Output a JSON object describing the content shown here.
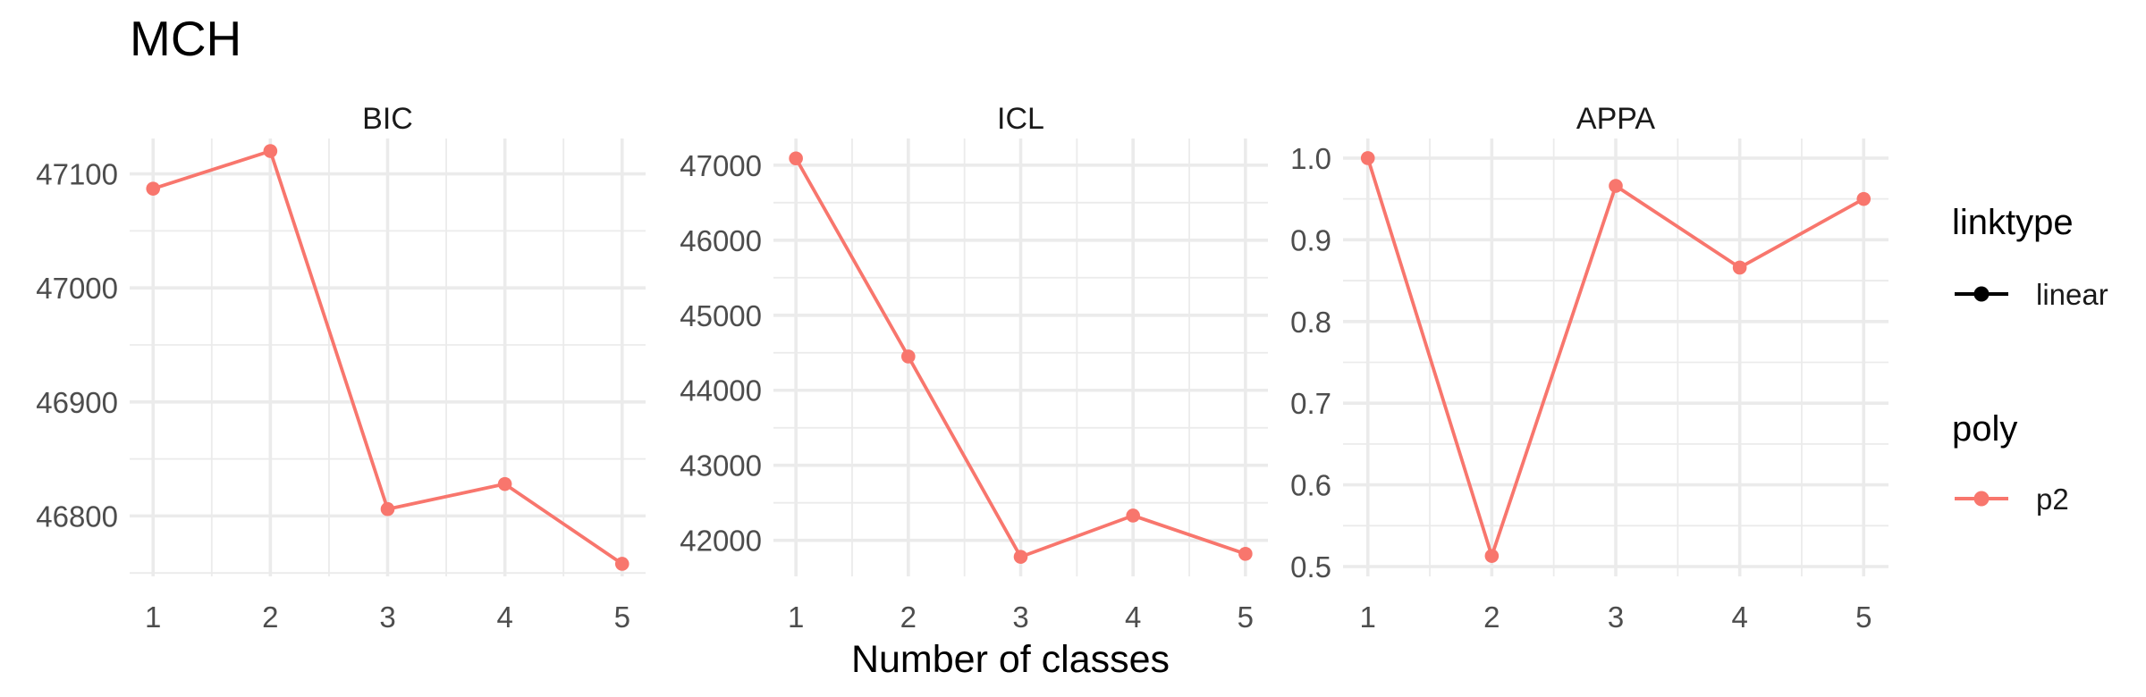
{
  "title": "MCH",
  "xlabel": "Number of classes",
  "colors": {
    "series": "#F8766D",
    "linktype_key": "#000000"
  },
  "legend": {
    "placement": "right",
    "groups": [
      {
        "title": "linktype",
        "entries": [
          {
            "label": "linear",
            "color": "#000000"
          }
        ]
      },
      {
        "title": "poly",
        "entries": [
          {
            "label": "p2",
            "color": "#F8766D"
          }
        ]
      }
    ]
  },
  "chart_data": [
    {
      "type": "line",
      "facet": "BIC",
      "x": [
        1,
        2,
        3,
        4,
        5
      ],
      "xticks": [
        "1",
        "2",
        "3",
        "4",
        "5"
      ],
      "series": [
        {
          "name": "p2",
          "values": [
            47087,
            47120,
            46806,
            46828,
            46758
          ]
        }
      ],
      "yticks": [
        46800,
        46900,
        47000,
        47100
      ],
      "ylim": [
        46747,
        47131
      ],
      "xlim": [
        0.8,
        5.2
      ],
      "grid": true
    },
    {
      "type": "line",
      "facet": "ICL",
      "x": [
        1,
        2,
        3,
        4,
        5
      ],
      "xticks": [
        "1",
        "2",
        "3",
        "4",
        "5"
      ],
      "series": [
        {
          "name": "p2",
          "values": [
            47090,
            44450,
            41780,
            42330,
            41820
          ]
        }
      ],
      "yticks": [
        42000,
        43000,
        44000,
        45000,
        46000,
        47000
      ],
      "ylim": [
        41520,
        47355
      ],
      "xlim": [
        0.8,
        5.2
      ],
      "grid": true
    },
    {
      "type": "line",
      "facet": "APPA",
      "x": [
        1,
        2,
        3,
        4,
        5
      ],
      "xticks": [
        "1",
        "2",
        "3",
        "4",
        "5"
      ],
      "series": [
        {
          "name": "p2",
          "values": [
            1.0,
            0.513,
            0.966,
            0.866,
            0.95
          ]
        }
      ],
      "yticks": [
        "0.5",
        "0.6",
        "0.7",
        "0.8",
        "0.9",
        "1.0"
      ],
      "ylim": [
        0.488,
        1.024
      ],
      "xlim": [
        0.8,
        5.2
      ],
      "grid": true
    }
  ]
}
